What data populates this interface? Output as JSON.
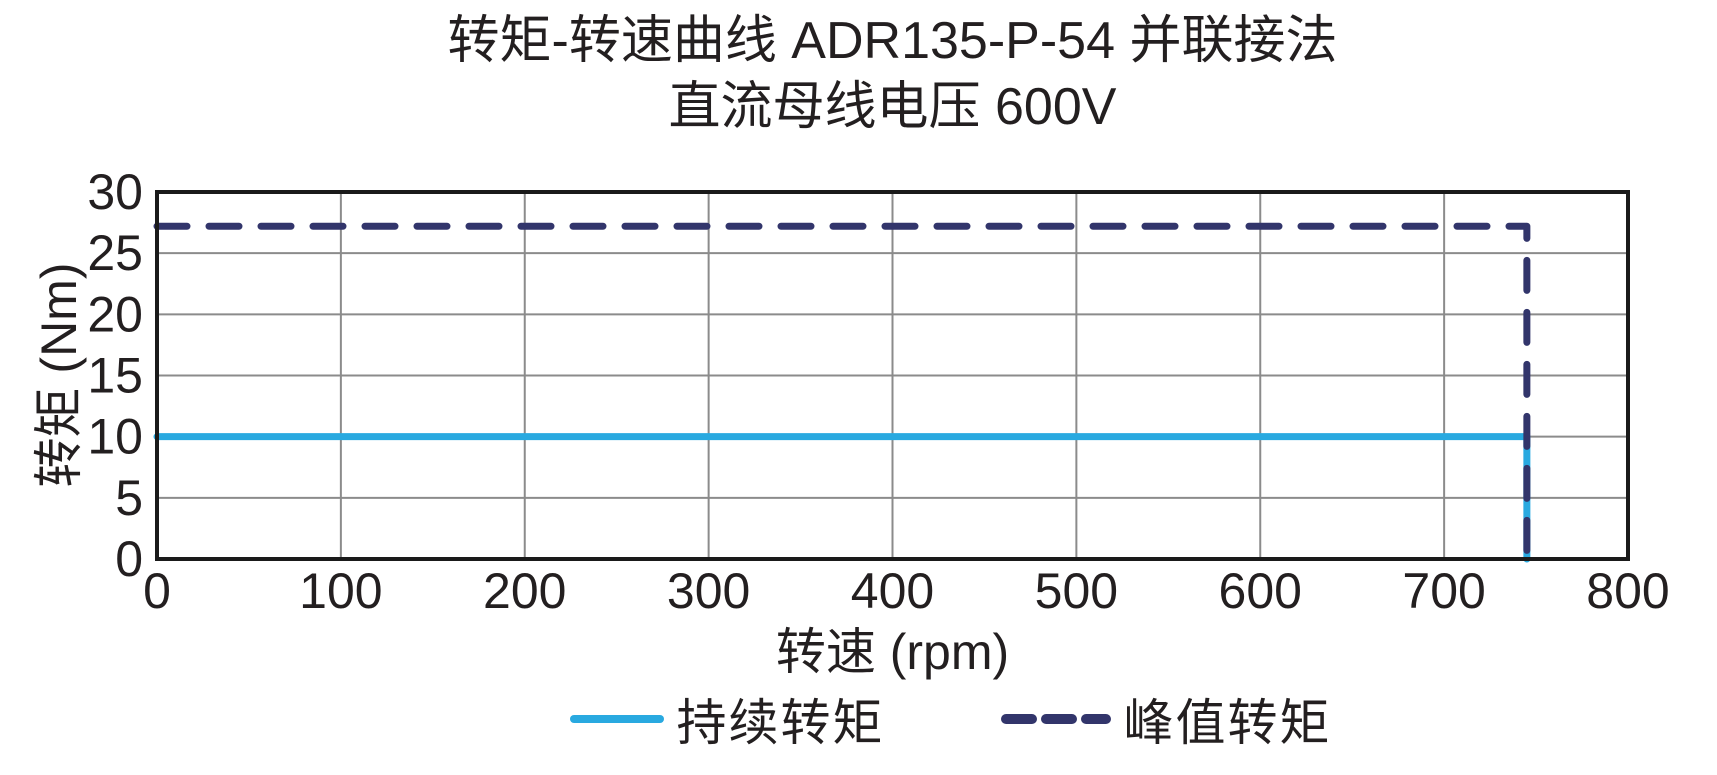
{
  "title": {
    "line1": "转矩-转速曲线 ADR135-P-54 并联接法",
    "line2": "直流母线电压 600V"
  },
  "colors": {
    "text": "#231f20",
    "grid": "#8b8b8b",
    "border": "#1a1a1a",
    "background": "#ffffff",
    "continuous_torque_line": "#29a9e0",
    "peak_torque_line": "#32356b"
  },
  "chart_data": {
    "type": "line",
    "title": "转矩-转速曲线 ADR135-P-54 并联接法",
    "subtitle": "直流母线电压 600V",
    "xlabel": "转速 (rpm)",
    "ylabel": "转矩 (Nm)",
    "xlim": [
      0,
      800
    ],
    "ylim": [
      0,
      30
    ],
    "xticks": [
      0,
      100,
      200,
      300,
      400,
      500,
      600,
      700,
      800
    ],
    "yticks": [
      0,
      5,
      10,
      15,
      20,
      25,
      30
    ],
    "grid": true,
    "legend_position": "bottom",
    "series": [
      {
        "name": "持续转矩",
        "line_style": "solid",
        "color": "#29a9e0",
        "points": [
          [
            0,
            10
          ],
          [
            745,
            10
          ],
          [
            745,
            0
          ]
        ]
      },
      {
        "name": "峰值转矩",
        "line_style": "dashed",
        "color": "#32356b",
        "points": [
          [
            0,
            27.2
          ],
          [
            745,
            27.2
          ],
          [
            745,
            0
          ]
        ]
      }
    ]
  }
}
